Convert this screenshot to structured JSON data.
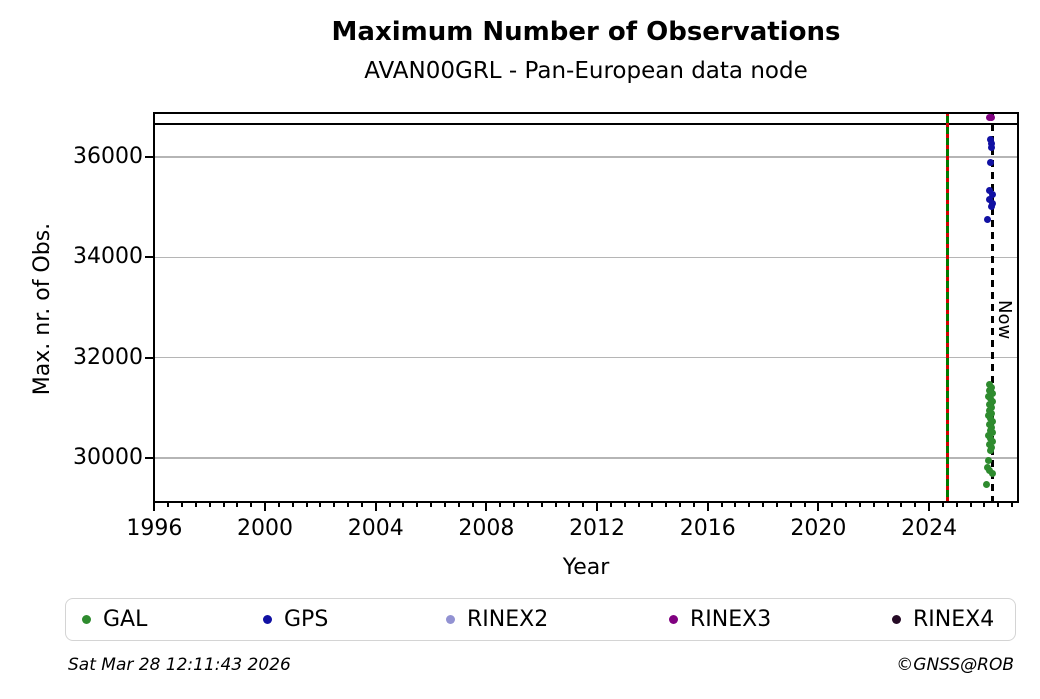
{
  "title": "Maximum Number of Observations",
  "subtitle": "AVAN00GRL - Pan-European data node",
  "footer": {
    "timestamp": "Sat Mar 28 12:11:43 2026",
    "credit": "©GNSS@ROB"
  },
  "chart_data": {
    "type": "scatter",
    "title": "Maximum Number of Observations",
    "subtitle": "AVAN00GRL - Pan-European data node",
    "xlabel": "Year",
    "ylabel": "Max. nr. of Obs.",
    "xlim": [
      1995.95,
      2027.25
    ],
    "ylim": [
      29100,
      36900
    ],
    "x_major_ticks": [
      1996,
      2000,
      2004,
      2008,
      2012,
      2016,
      2020,
      2024
    ],
    "x_minor_step": 0.5,
    "y_major_ticks": [
      30000,
      32000,
      34000,
      36000
    ],
    "grid": "horizontal-major-only",
    "legend_position": "bottom",
    "annotations": {
      "max_line": {
        "y": 36660,
        "color": "#000000",
        "style": "solid"
      },
      "campaign_line": {
        "x": 2024.68,
        "colors": [
          "#007a00",
          "#d40000"
        ],
        "style": "green-with-red-dashes"
      },
      "now_line": {
        "x": 2026.3,
        "color": "#000000",
        "style": "dashed",
        "label": "Now"
      }
    },
    "series": [
      {
        "name": "GAL",
        "color": "#2e8b2e",
        "points": [
          [
            2026.18,
            31460
          ],
          [
            2026.25,
            31400
          ],
          [
            2026.2,
            31340
          ],
          [
            2026.28,
            31290
          ],
          [
            2026.15,
            31230
          ],
          [
            2026.22,
            31180
          ],
          [
            2026.3,
            31120
          ],
          [
            2026.17,
            31060
          ],
          [
            2026.24,
            31010
          ],
          [
            2026.2,
            30950
          ],
          [
            2026.27,
            30890
          ],
          [
            2026.14,
            30840
          ],
          [
            2026.22,
            30780
          ],
          [
            2026.29,
            30720
          ],
          [
            2026.18,
            30670
          ],
          [
            2026.25,
            30610
          ],
          [
            2026.21,
            30550
          ],
          [
            2026.28,
            30500
          ],
          [
            2026.16,
            30440
          ],
          [
            2026.23,
            30380
          ],
          [
            2026.3,
            30330
          ],
          [
            2026.19,
            30270
          ],
          [
            2026.26,
            30210
          ],
          [
            2026.22,
            30150
          ],
          [
            2026.14,
            29945
          ],
          [
            2026.1,
            29806
          ],
          [
            2026.2,
            29748
          ],
          [
            2026.28,
            29690
          ],
          [
            2026.08,
            29467
          ]
        ]
      },
      {
        "name": "GPS",
        "color": "#1111a3",
        "points": [
          [
            2026.22,
            36360
          ],
          [
            2026.27,
            36270
          ],
          [
            2026.24,
            36185
          ],
          [
            2026.23,
            35885
          ],
          [
            2026.17,
            35338
          ],
          [
            2026.28,
            35250
          ],
          [
            2026.2,
            35160
          ],
          [
            2026.3,
            35070
          ],
          [
            2026.24,
            35010
          ],
          [
            2026.12,
            34750
          ]
        ]
      },
      {
        "name": "RINEX2",
        "color": "#9292d2",
        "points": []
      },
      {
        "name": "RINEX3",
        "color": "#800080",
        "points": [
          [
            2026.17,
            36790
          ],
          [
            2026.25,
            36790
          ]
        ]
      },
      {
        "name": "RINEX4",
        "color": "#260b26",
        "points": []
      }
    ]
  }
}
